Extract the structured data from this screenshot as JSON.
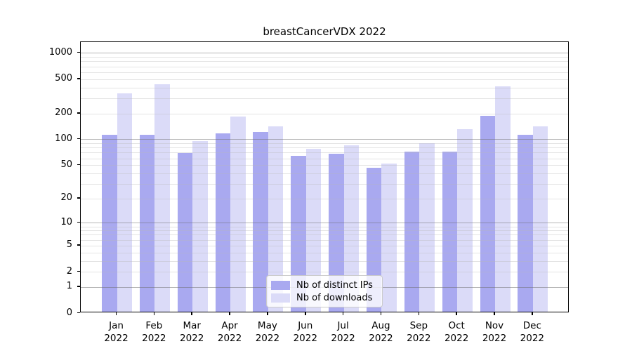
{
  "chart_data": {
    "type": "bar",
    "title": "breastCancerVDX 2022",
    "scale": "log1p",
    "grid": "on",
    "legend_position": "bottom-center",
    "categories": [
      "Jan",
      "Feb",
      "Mar",
      "Apr",
      "May",
      "Jun",
      "Jul",
      "Aug",
      "Sep",
      "Oct",
      "Nov",
      "Dec"
    ],
    "year": "2022",
    "series": [
      {
        "name": "Nb of distinct IPs",
        "color": "#a9a9f0",
        "values": [
          111,
          111,
          68,
          116,
          119,
          63,
          66,
          46,
          70,
          71,
          183,
          110
        ]
      },
      {
        "name": "Nb of downloads",
        "color": "#dbdbf8",
        "values": [
          333,
          430,
          93,
          179,
          140,
          76,
          84,
          51,
          88,
          128,
          402,
          140
        ]
      }
    ],
    "yticks": [
      1000,
      500,
      200,
      100,
      50,
      20,
      10,
      5,
      2,
      1,
      0
    ],
    "ylim": [
      0,
      1200
    ],
    "axis_color": "#000000",
    "major_grid_values": [
      1,
      10,
      100,
      1000
    ]
  }
}
